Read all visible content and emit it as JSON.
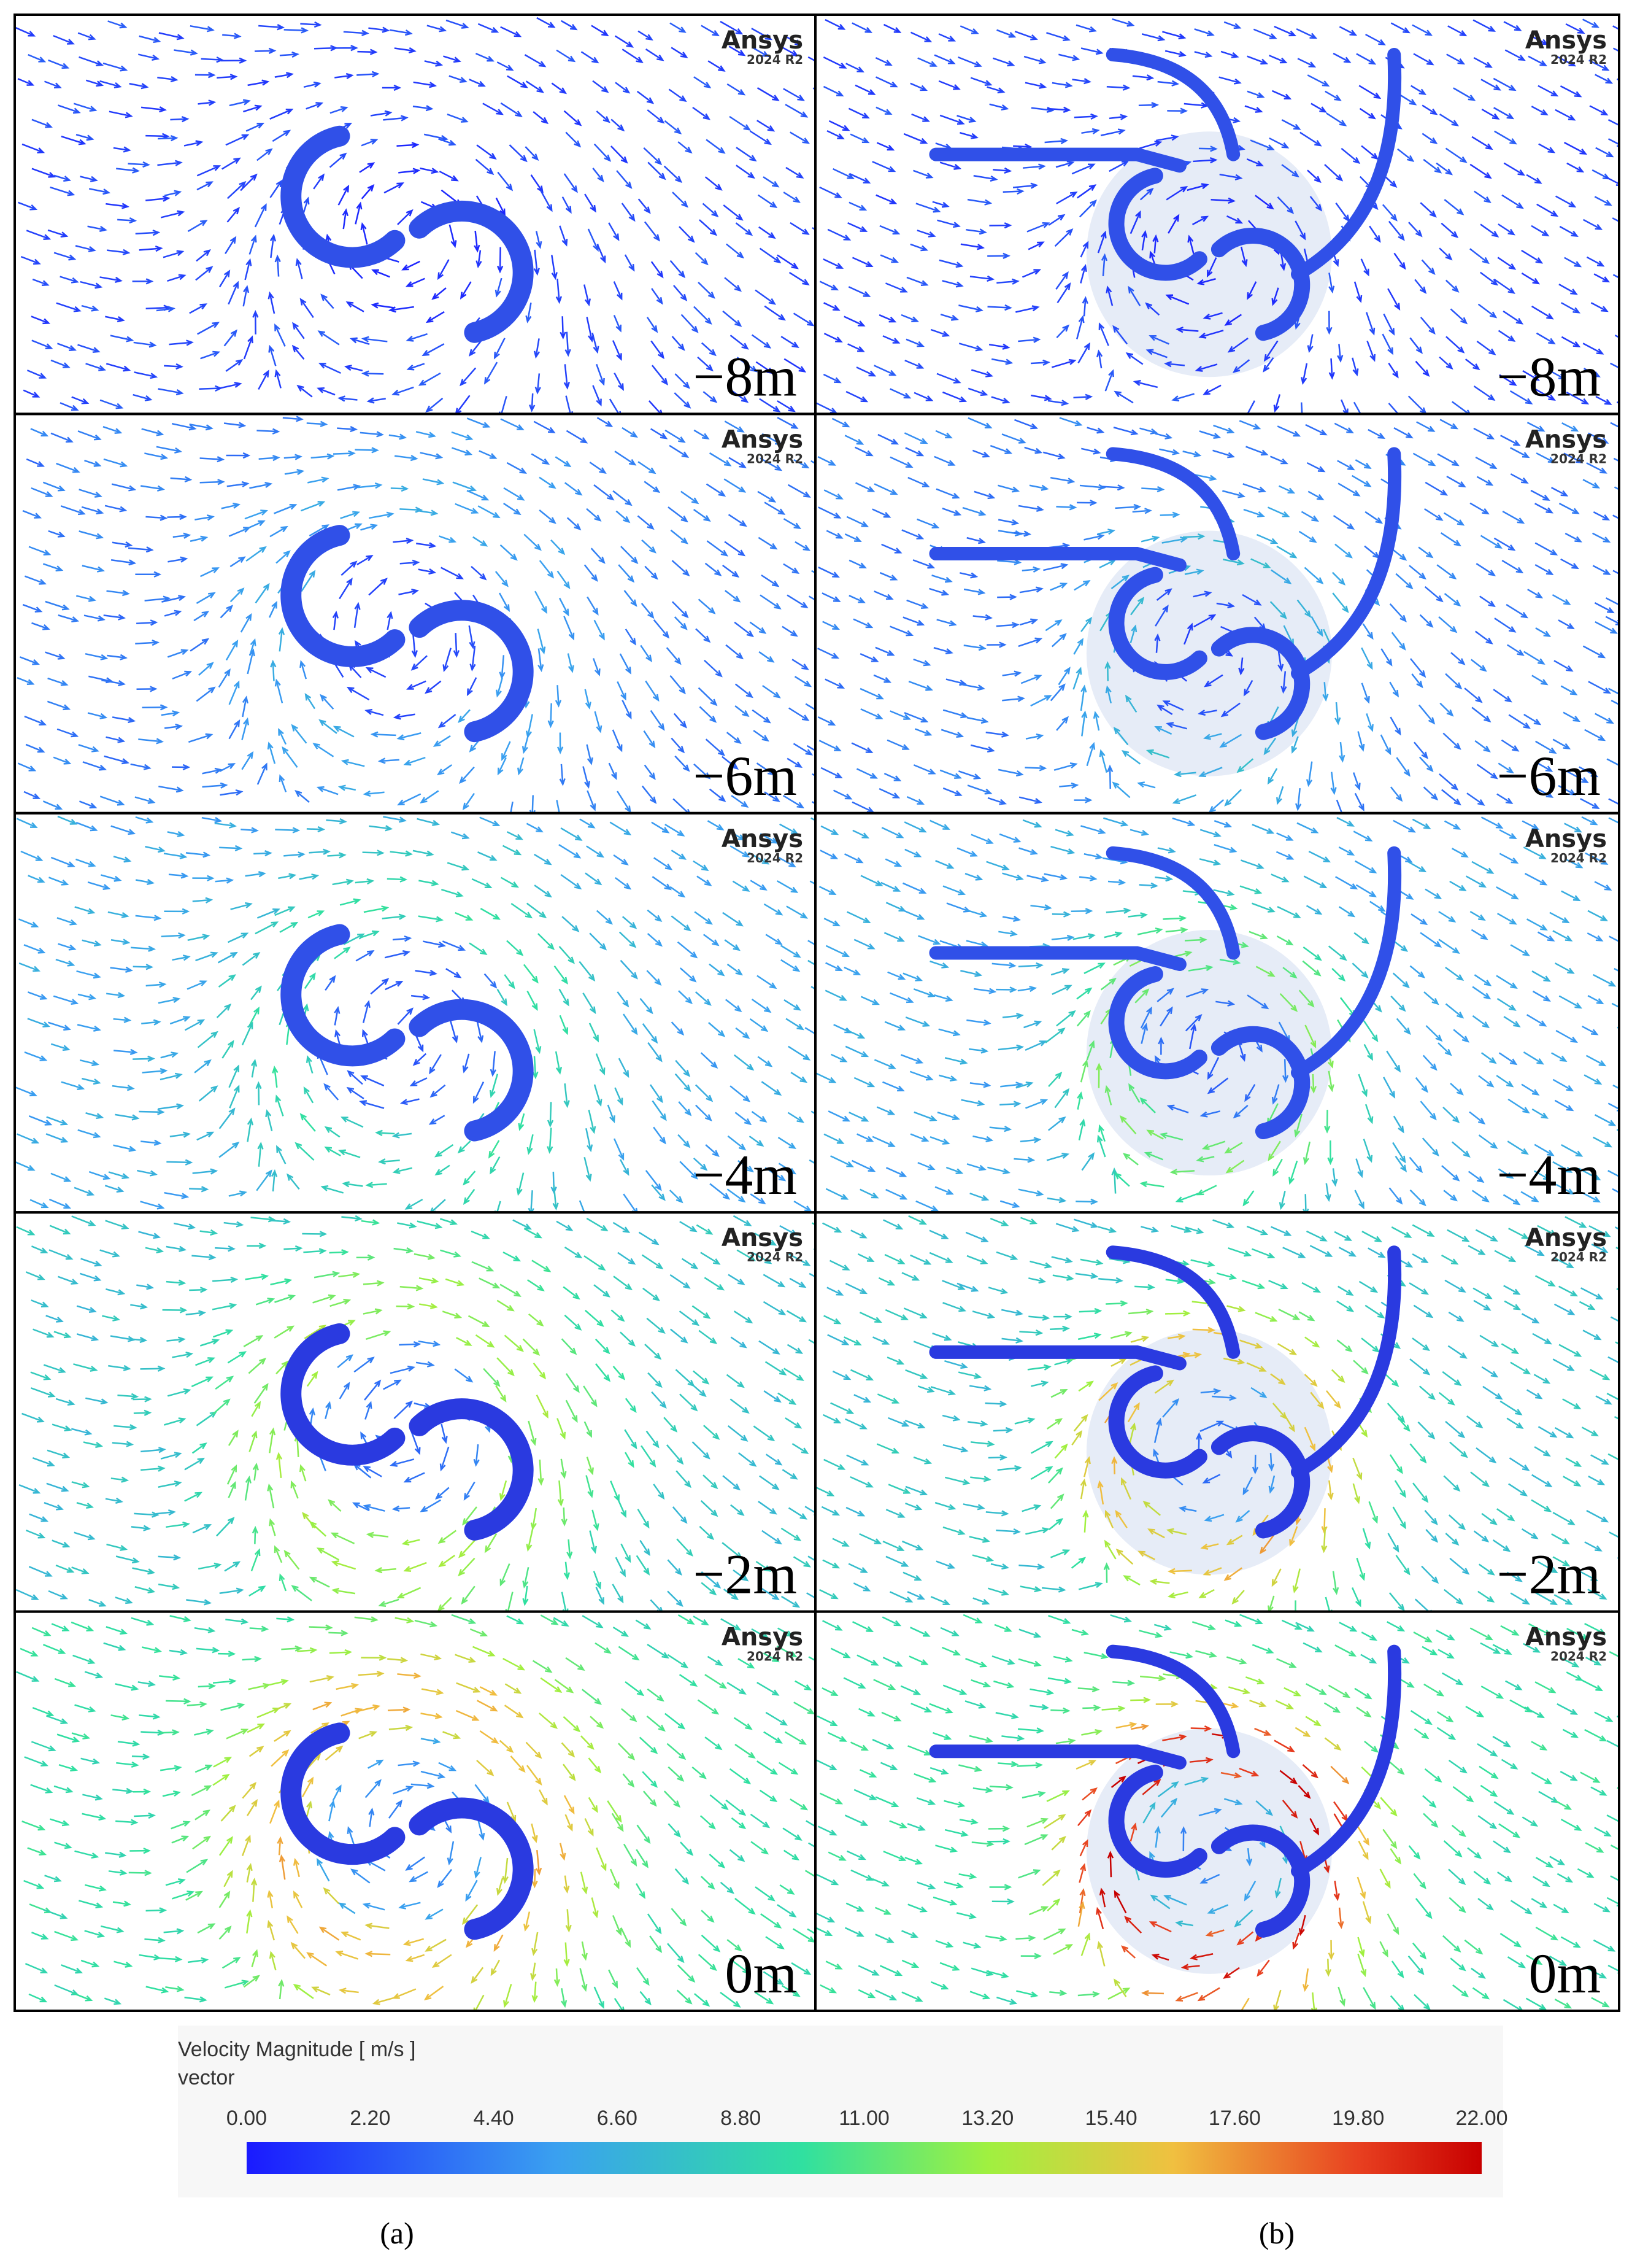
{
  "columns": [
    {
      "caption": "(a)",
      "panels": [
        {
          "label": "−8m",
          "logo": "Ansys",
          "version": "2024 R2"
        },
        {
          "label": "−6m",
          "logo": "Ansys",
          "version": "2024 R2"
        },
        {
          "label": "−4m",
          "logo": "Ansys",
          "version": "2024 R2"
        },
        {
          "label": "−2m",
          "logo": "Ansys",
          "version": "2024 R2"
        },
        {
          "label": "0m",
          "logo": "Ansys",
          "version": "2024 R2"
        }
      ]
    },
    {
      "caption": "(b)",
      "panels": [
        {
          "label": "−8m",
          "logo": "Ansys",
          "version": "2024 R2"
        },
        {
          "label": "−6m",
          "logo": "Ansys",
          "version": "2024 R2"
        },
        {
          "label": "−4m",
          "logo": "Ansys",
          "version": "2024 R2"
        },
        {
          "label": "−2m",
          "logo": "Ansys",
          "version": "2024 R2"
        },
        {
          "label": "0m",
          "logo": "Ansys",
          "version": "2024 R2"
        }
      ]
    }
  ],
  "colorbar": {
    "title": "Velocity Magnitude [ m/s ]",
    "subtitle": "vector",
    "ticks": [
      "0.00",
      "2.20",
      "4.40",
      "6.60",
      "8.80",
      "11.00",
      "13.20",
      "15.40",
      "17.60",
      "19.80",
      "22.00"
    ]
  }
}
